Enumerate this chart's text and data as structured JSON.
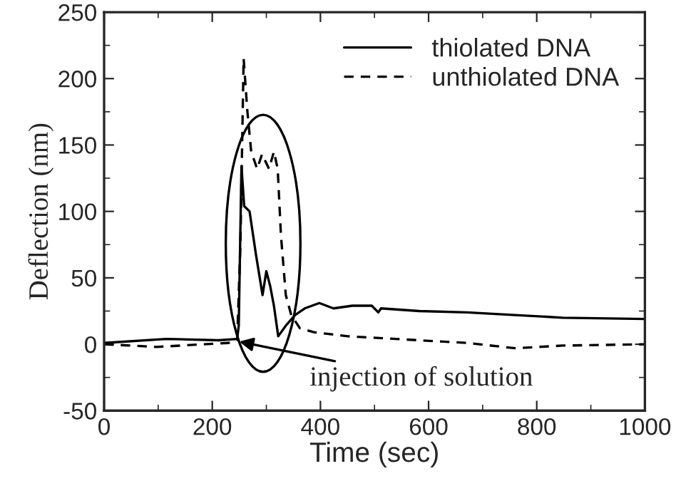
{
  "chart_data": {
    "type": "line",
    "xlabel": "Time (sec)",
    "ylabel": "Deflection (nm)",
    "xlim": [
      0,
      1000
    ],
    "xticks": [
      0,
      200,
      400,
      600,
      800,
      1000
    ],
    "ylim": [
      -50,
      250
    ],
    "yticks": [
      -50,
      0,
      50,
      100,
      150,
      200,
      250
    ],
    "legend": "top right",
    "grid": false,
    "annotations": [
      {
        "text": "injection of solution",
        "x": 250,
        "y": 2
      }
    ],
    "series": [
      {
        "name": "thiolated DNA",
        "color": "#000000",
        "line_style": "solid",
        "x": [
          0,
          115,
          212,
          246,
          249,
          254,
          259,
          269,
          281,
          293,
          300,
          307,
          314,
          322,
          336,
          353,
          371,
          398,
          424,
          459,
          495,
          507,
          512,
          583,
          671,
          760,
          848,
          1000
        ],
        "values": [
          1,
          4,
          3,
          4,
          14,
          134,
          104,
          100,
          67,
          37,
          55,
          44,
          29,
          6,
          14,
          22,
          27,
          31,
          27,
          29,
          29,
          24,
          27,
          25,
          24,
          22,
          20,
          19
        ]
      },
      {
        "name": "unthiolated DNA",
        "color": "#000000",
        "line_style": "dashed",
        "x": [
          0,
          97,
          230,
          246,
          252,
          258,
          265,
          272,
          283,
          292,
          305,
          314,
          321,
          327,
          336,
          346,
          362,
          389,
          451,
          539,
          671,
          760,
          848,
          1000
        ],
        "values": [
          0,
          -2,
          1,
          3,
          74,
          215,
          175,
          145,
          132,
          143,
          132,
          145,
          132,
          82,
          37,
          22,
          12,
          9,
          6,
          4,
          1,
          -3,
          -1,
          0
        ]
      }
    ]
  }
}
